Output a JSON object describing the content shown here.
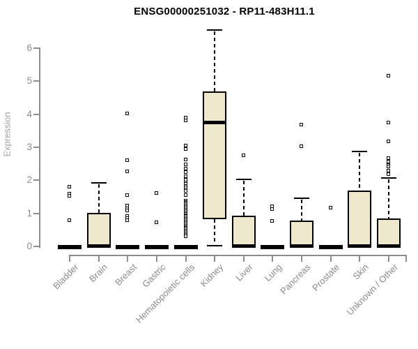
{
  "colors": {
    "box_fill": "#ede7cb",
    "box_border": "#000000",
    "axis": "#8c8c8c",
    "tick_label_color": "#8c8c8c",
    "y_axis_title_color": "#a3a3a3",
    "title_color": "#000000",
    "background": "#ffffff"
  },
  "chart_data": {
    "type": "boxplot",
    "title": "ENSG00000251032 - RP11-483H11.1",
    "xlabel": "",
    "ylabel": "Expression",
    "ylim": [
      0,
      6.6
    ],
    "y_ticks": [
      0,
      1,
      2,
      3,
      4,
      5,
      6
    ],
    "grid": false,
    "legend": false,
    "outlier_marker": "open-square",
    "categories": [
      "Bladder",
      "Brain",
      "Breast",
      "Gastric",
      "Hematopoietic cells",
      "Kidney",
      "Liver",
      "Lung",
      "Pancreas",
      "Prostate",
      "Skin",
      "Unknown / Other"
    ],
    "series": [
      {
        "name": "Bladder",
        "q1": 0,
        "median": 0,
        "q3": 0,
        "whisker_low": 0,
        "whisker_high": 0,
        "outliers": [
          1.8,
          1.58,
          1.52,
          0.78
        ]
      },
      {
        "name": "Brain",
        "q1": 0,
        "median": 0,
        "q3": 1.02,
        "whisker_low": 0,
        "whisker_high": 1.92,
        "outliers": []
      },
      {
        "name": "Breast",
        "q1": 0,
        "median": 0,
        "q3": 0,
        "whisker_low": 0,
        "whisker_high": 0,
        "outliers": [
          4.02,
          2.6,
          2.27,
          1.55,
          1.23,
          1.15,
          1.08,
          0.9,
          0.85,
          0.78
        ]
      },
      {
        "name": "Gastric",
        "q1": 0,
        "median": 0,
        "q3": 0,
        "whisker_low": 0,
        "whisker_high": 0,
        "outliers": [
          1.6,
          0.72
        ]
      },
      {
        "name": "Hematopoietic cells",
        "q1": 0,
        "median": 0,
        "q3": 0,
        "whisker_low": 0,
        "whisker_high": 0,
        "outliers": [
          3.88,
          3.8,
          3.05,
          2.93,
          2.62,
          2.48,
          2.35,
          2.23,
          2.12,
          2.0,
          1.92,
          1.87,
          1.82,
          1.77,
          1.72,
          1.67,
          1.55,
          1.38,
          1.34,
          1.3,
          1.26,
          1.22,
          1.18,
          1.14,
          1.1,
          1.06,
          1.02,
          0.98,
          0.94,
          0.9,
          0.86,
          0.82,
          0.78,
          0.74,
          0.7,
          0.66,
          0.62,
          0.58,
          0.54,
          0.5,
          0.46,
          0.42,
          0.38,
          0.34,
          0.3
        ]
      },
      {
        "name": "Kidney",
        "q1": 0.82,
        "median": 3.75,
        "q3": 4.7,
        "whisker_low": 0.03,
        "whisker_high": 6.55,
        "outliers": []
      },
      {
        "name": "Liver",
        "q1": 0,
        "median": 0,
        "q3": 0.93,
        "whisker_low": 0,
        "whisker_high": 2.03,
        "outliers": [
          2.75
        ]
      },
      {
        "name": "Lung",
        "q1": 0,
        "median": 0,
        "q3": 0,
        "whisker_low": 0,
        "whisker_high": 0,
        "outliers": [
          1.2,
          1.13,
          0.76
        ]
      },
      {
        "name": "Pancreas",
        "q1": 0,
        "median": 0,
        "q3": 0.78,
        "whisker_low": 0,
        "whisker_high": 1.45,
        "outliers": [
          3.68,
          3.02
        ]
      },
      {
        "name": "Prostate",
        "q1": 0,
        "median": 0,
        "q3": 0,
        "whisker_low": 0,
        "whisker_high": 0,
        "outliers": [
          1.17
        ]
      },
      {
        "name": "Skin",
        "q1": 0,
        "median": 0,
        "q3": 1.68,
        "whisker_low": 0,
        "whisker_high": 2.88,
        "outliers": []
      },
      {
        "name": "Unknown / Other",
        "q1": 0,
        "median": 0,
        "q3": 0.85,
        "whisker_low": 0,
        "whisker_high": 2.07,
        "outliers": [
          5.15,
          3.75,
          3.17,
          2.66,
          2.55,
          2.45,
          2.4,
          2.28,
          2.18
        ]
      }
    ]
  }
}
